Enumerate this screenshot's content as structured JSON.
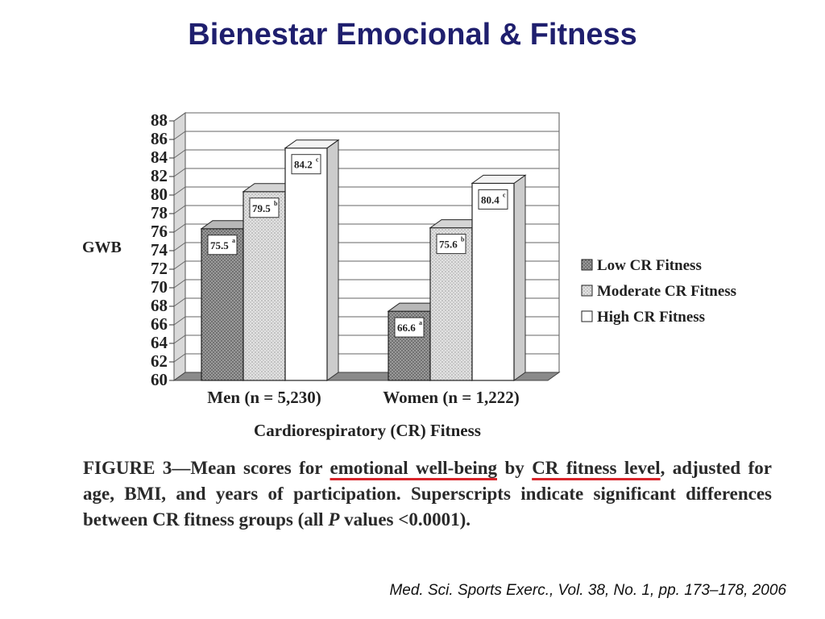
{
  "slide": {
    "title": "Bienestar Emocional & Fitness",
    "citation": "Med. Sci. Sports Exerc., Vol. 38, No. 1, pp. 173–178, 2006"
  },
  "caption": {
    "lead": "FIGURE 3—Mean scores for ",
    "highlight1": "emotional well-being",
    "mid": " by ",
    "highlight2": "CR fitness level",
    "rest1": ", adjusted for age, BMI, and years of participation. Superscripts indicate significant differences between CR fitness groups (all ",
    "p": "P",
    "rest2": " values <0.0001)."
  },
  "chart_data": {
    "type": "bar",
    "ylabel": "GWB",
    "xlabel": "Cardiorespiratory (CR) Fitness",
    "ylim": [
      60,
      88
    ],
    "yticks": [
      60,
      62,
      64,
      66,
      68,
      70,
      72,
      74,
      76,
      78,
      80,
      82,
      84,
      86,
      88
    ],
    "grid": true,
    "legend_position": "right",
    "categories": [
      "Men (n = 5,230)",
      "Women (n = 1,222)"
    ],
    "series": [
      {
        "name": "Low CR Fitness",
        "values": [
          75.5,
          66.6
        ],
        "labels": [
          "75.5",
          "66.6"
        ],
        "superscripts": [
          "a",
          "a"
        ],
        "pattern": "dark-dots"
      },
      {
        "name": "Moderate CR Fitness",
        "values": [
          79.5,
          75.6
        ],
        "labels": [
          "79.5",
          "75.6"
        ],
        "superscripts": [
          "b",
          "b"
        ],
        "pattern": "light-dots"
      },
      {
        "name": "High CR Fitness",
        "values": [
          84.2,
          80.4
        ],
        "labels": [
          "84.2",
          "80.4"
        ],
        "superscripts": [
          "c",
          "c"
        ],
        "pattern": "white"
      }
    ]
  }
}
